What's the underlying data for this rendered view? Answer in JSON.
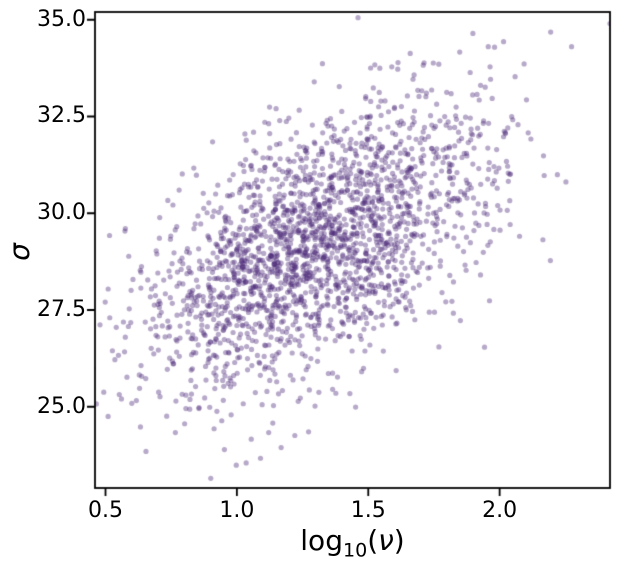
{
  "figure": {
    "background": "#ffffff",
    "frame_color": "#000000"
  },
  "chart_data": {
    "type": "scatter",
    "title": "",
    "xlabel": {
      "func": "log",
      "sub": "10",
      "open": "(",
      "var": "ν",
      "close": ")"
    },
    "ylabel": "σ",
    "xlim": [
      0.46,
      2.42
    ],
    "ylim": [
      22.9,
      35.2
    ],
    "xticks": [
      0.5,
      1.0,
      1.5,
      2.0
    ],
    "xtick_labels": [
      "0.5",
      "1.0",
      "1.5",
      "2.0"
    ],
    "yticks": [
      25.0,
      27.5,
      30.0,
      32.5,
      35.0
    ],
    "ytick_labels": [
      "25.0",
      "27.5",
      "30.0",
      "32.5",
      "35.0"
    ],
    "grid": false,
    "legend": null,
    "marker": {
      "color": "#4a2878",
      "alpha": 0.4,
      "radius_px": 2.6
    },
    "points_summary": {
      "n_points": 2200,
      "x_mean": 1.3,
      "x_sd": 0.33,
      "y_mean": 29.2,
      "y_sd": 1.85,
      "correlation": 0.55,
      "x_range_visible": [
        0.55,
        2.38
      ],
      "y_range_visible": [
        23.9,
        34.6
      ],
      "seed": 42,
      "note": "dense cloud of semi-transparent purple sample points, positively correlated, darkest around (1.25, 29)"
    }
  }
}
